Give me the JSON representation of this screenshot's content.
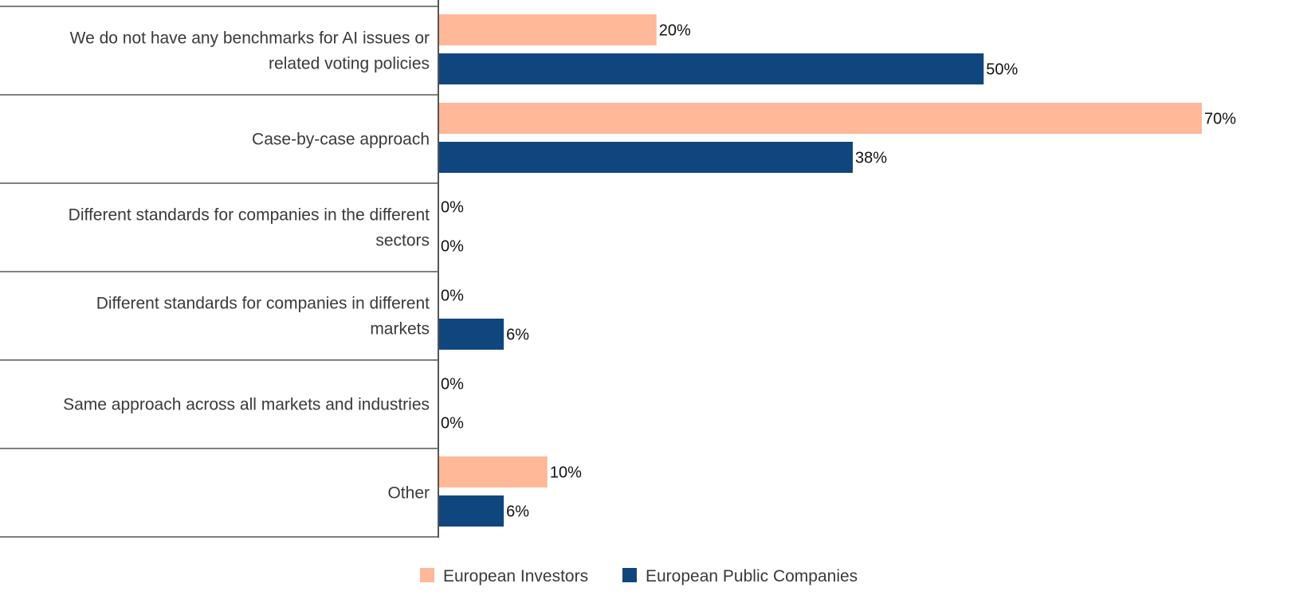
{
  "chart_data": {
    "type": "bar",
    "orientation": "horizontal",
    "categories": [
      [
        "We do not have any benchmarks for AI issues or",
        "related voting policies"
      ],
      [
        "Case-by-case approach"
      ],
      [
        "Different standards for companies in the different",
        "sectors"
      ],
      [
        "Different standards for companies in different",
        "markets"
      ],
      [
        "Same approach across all markets and industries"
      ],
      [
        "Other"
      ]
    ],
    "series": [
      {
        "name": "European Investors",
        "color": "#FFB898",
        "values": [
          20,
          70,
          0,
          0,
          0,
          10
        ]
      },
      {
        "name": "European Public Companies",
        "color": "#10467E",
        "values": [
          50,
          38,
          0,
          6,
          0,
          6
        ]
      }
    ],
    "value_suffix": "%",
    "xlim": [
      0,
      70
    ],
    "legend_position": "bottom-center",
    "grid": false
  }
}
